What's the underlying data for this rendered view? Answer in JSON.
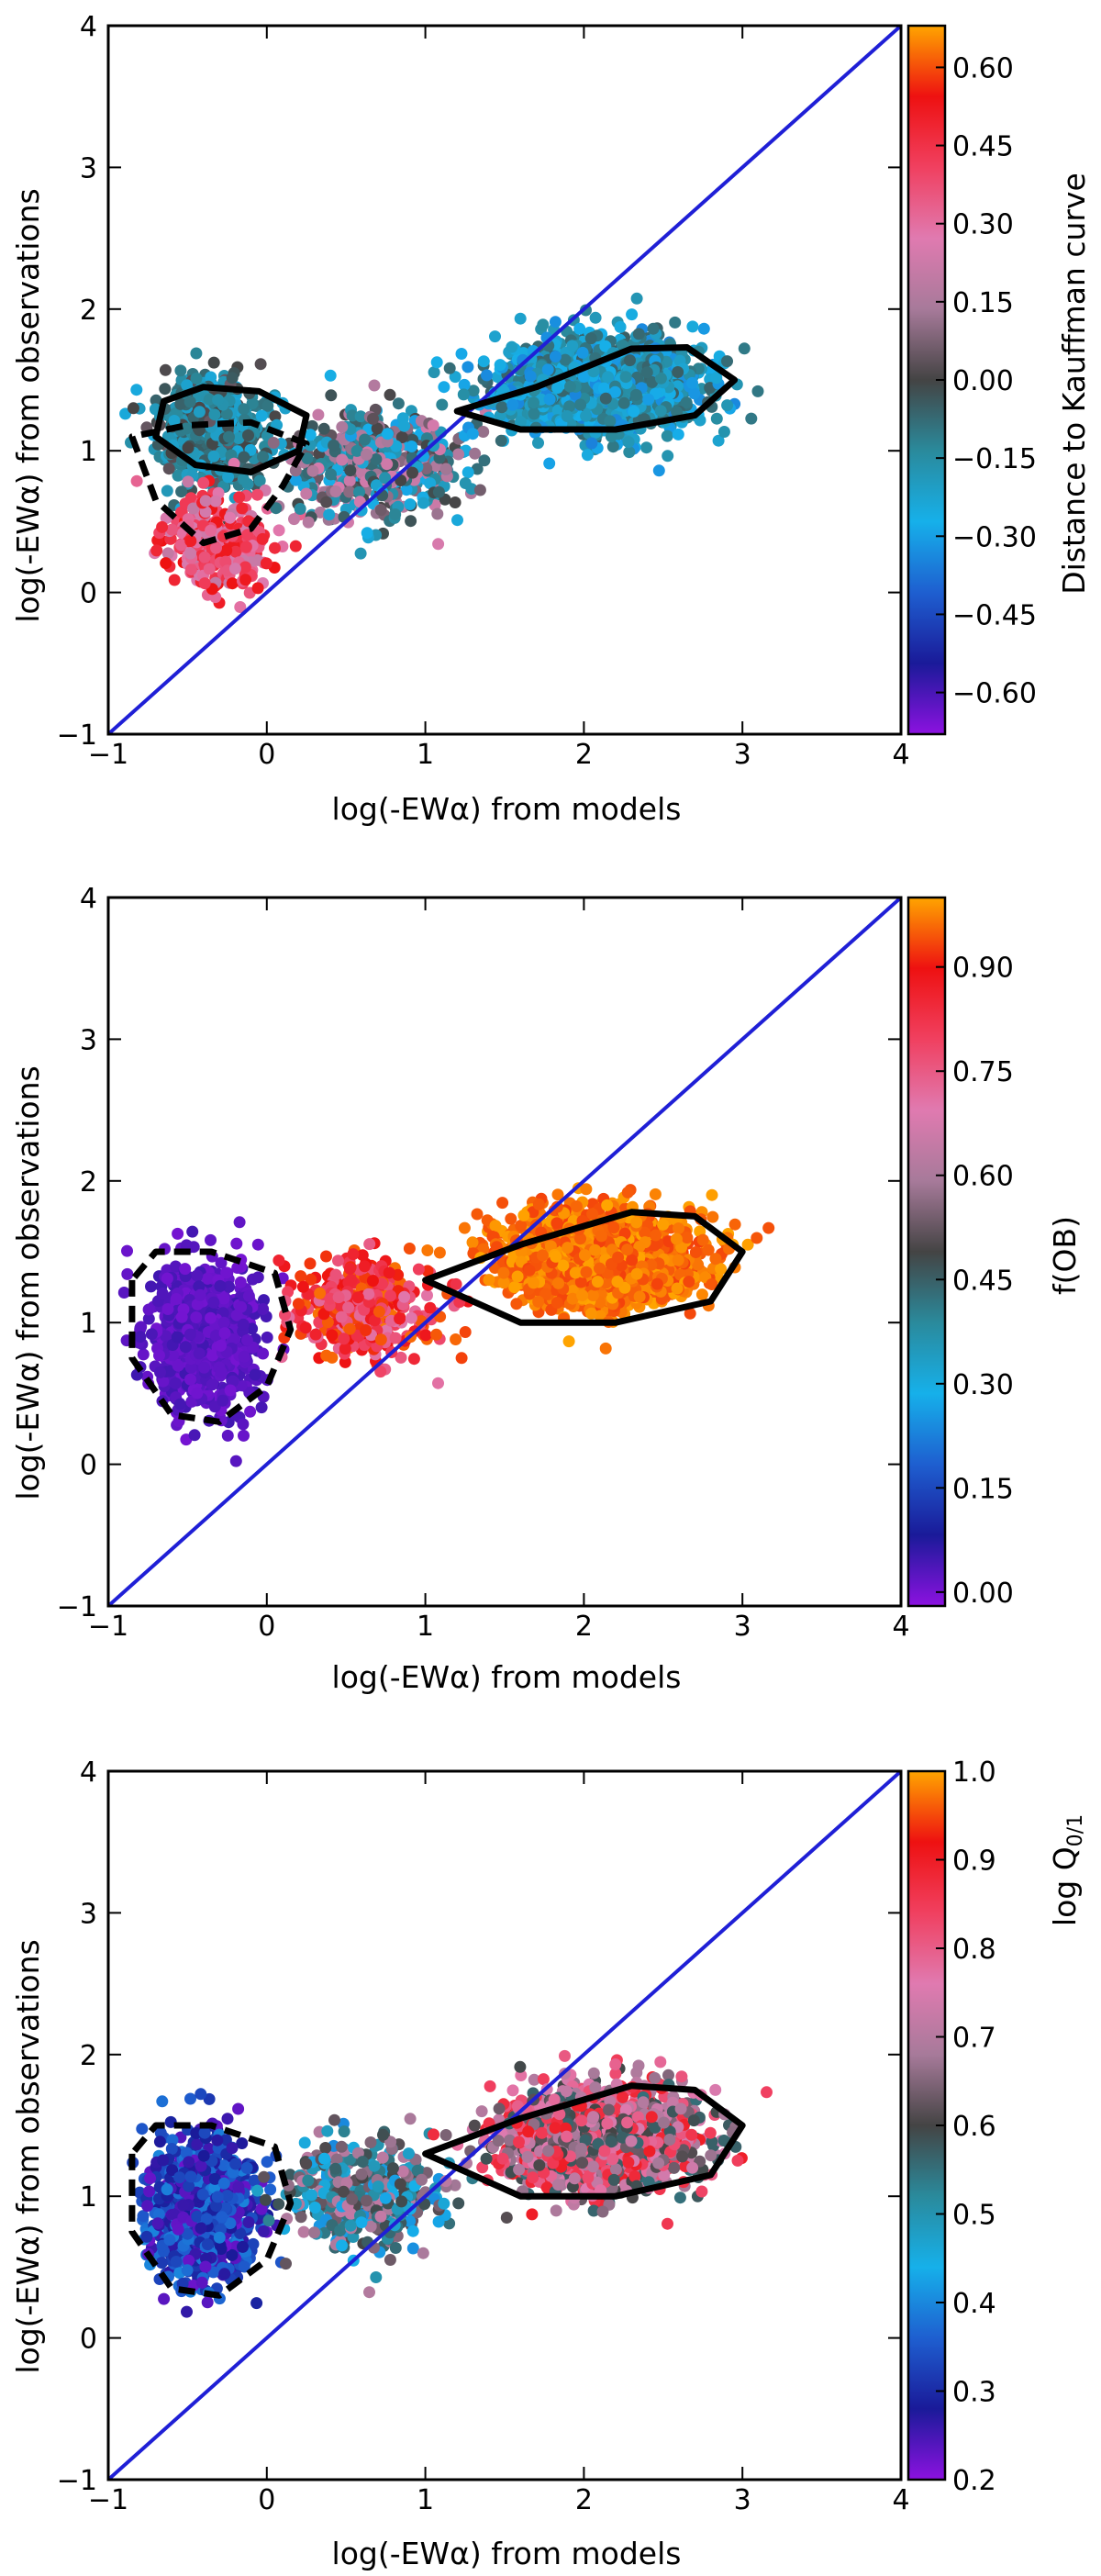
{
  "chart_data": [
    {
      "type": "scatter",
      "xlabel": "log(-EWα) from models",
      "ylabel": "log(-EWα) from observations",
      "xlim": [
        -1,
        4
      ],
      "ylim": [
        -1,
        4
      ],
      "xticks": [
        -1,
        0,
        1,
        2,
        3,
        4
      ],
      "yticks": [
        -1,
        0,
        1,
        2,
        3,
        4
      ],
      "reference_line": {
        "type": "one-to-one",
        "x": [
          -1,
          4
        ],
        "y": [
          -1,
          4
        ],
        "color": "#1f1fd6"
      },
      "colorbar": {
        "label": "Distance to Kauffman curve",
        "range": [
          -0.68,
          0.68
        ],
        "ticks": [
          -0.6,
          -0.45,
          -0.3,
          -0.15,
          0.0,
          0.15,
          0.3,
          0.45,
          0.6
        ],
        "tick_labels": [
          "−0.60",
          "−0.45",
          "−0.30",
          "−0.15",
          "0.00",
          "0.15",
          "0.30",
          "0.45",
          "0.60"
        ],
        "colors": [
          "#8c12e0",
          "#1a1a99",
          "#1e5fd0",
          "#16b0ea",
          "#2a8a9c",
          "#444444",
          "#a77a9a",
          "#e07ab0",
          "#f04060",
          "#ee1111",
          "#ffa500"
        ]
      },
      "series": [
        {
          "cluster": "left-upper",
          "center": [
            -0.35,
            1.15
          ],
          "spread": [
            0.3,
            0.35
          ],
          "value_range": [
            -0.25,
            0.05
          ],
          "n": 650
        },
        {
          "cluster": "left-lower",
          "center": [
            -0.3,
            0.35
          ],
          "spread": [
            0.3,
            0.3
          ],
          "value_range": [
            0.2,
            0.55
          ],
          "n": 320
        },
        {
          "cluster": "middle",
          "center": [
            0.7,
            0.9
          ],
          "spread": [
            0.5,
            0.35
          ],
          "value_range": [
            -0.3,
            0.25
          ],
          "n": 500
        },
        {
          "cluster": "right",
          "center": [
            2.1,
            1.45
          ],
          "spread": [
            0.55,
            0.3
          ],
          "value_range": [
            -0.35,
            -0.05
          ],
          "n": 1700
        }
      ],
      "contours": [
        {
          "style": "solid",
          "points": [
            [
              -0.7,
              1.1
            ],
            [
              -0.65,
              1.35
            ],
            [
              -0.4,
              1.45
            ],
            [
              -0.05,
              1.42
            ],
            [
              0.25,
              1.25
            ],
            [
              0.2,
              1.0
            ],
            [
              -0.1,
              0.85
            ],
            [
              -0.45,
              0.9
            ],
            [
              -0.7,
              1.1
            ]
          ]
        },
        {
          "style": "dashed",
          "points": [
            [
              -0.85,
              1.1
            ],
            [
              -0.7,
              0.65
            ],
            [
              -0.4,
              0.35
            ],
            [
              -0.1,
              0.45
            ],
            [
              0.1,
              0.75
            ],
            [
              0.25,
              1.05
            ],
            [
              -0.1,
              1.2
            ],
            [
              -0.5,
              1.18
            ],
            [
              -0.85,
              1.1
            ]
          ]
        },
        {
          "style": "solid",
          "points": [
            [
              1.2,
              1.28
            ],
            [
              1.7,
              1.45
            ],
            [
              2.3,
              1.72
            ],
            [
              2.65,
              1.73
            ],
            [
              2.95,
              1.5
            ],
            [
              2.7,
              1.25
            ],
            [
              2.2,
              1.15
            ],
            [
              1.6,
              1.15
            ],
            [
              1.2,
              1.28
            ]
          ]
        }
      ]
    },
    {
      "type": "scatter",
      "xlabel": "log(-EWα) from models",
      "ylabel": "log(-EWα) from observations",
      "xlim": [
        -1,
        4
      ],
      "ylim": [
        -1,
        4
      ],
      "xticks": [
        -1,
        0,
        1,
        2,
        3,
        4
      ],
      "yticks": [
        -1,
        0,
        1,
        2,
        3,
        4
      ],
      "reference_line": {
        "type": "one-to-one",
        "x": [
          -1,
          4
        ],
        "y": [
          -1,
          4
        ],
        "color": "#1f1fd6"
      },
      "colorbar": {
        "label": "f(OB)",
        "range": [
          -0.02,
          1.0
        ],
        "ticks": [
          0.0,
          0.15,
          0.3,
          0.45,
          0.6,
          0.75,
          0.9
        ],
        "tick_labels": [
          "0.00",
          "0.15",
          "0.30",
          "0.45",
          "0.60",
          "0.75",
          "0.90"
        ],
        "colors": [
          "#8c12e0",
          "#1a1a99",
          "#1e5fd0",
          "#16b0ea",
          "#2a8a9c",
          "#444444",
          "#a77a9a",
          "#e07ab0",
          "#f04060",
          "#ee1111",
          "#ffa500"
        ]
      },
      "series": [
        {
          "cluster": "left",
          "center": [
            -0.4,
            0.9
          ],
          "spread": [
            0.3,
            0.45
          ],
          "value_range": [
            0.0,
            0.05
          ],
          "n": 900
        },
        {
          "cluster": "middle",
          "center": [
            0.6,
            1.1
          ],
          "spread": [
            0.4,
            0.3
          ],
          "value_range": [
            0.7,
            0.97
          ],
          "n": 450
        },
        {
          "cluster": "right",
          "center": [
            2.1,
            1.45
          ],
          "spread": [
            0.55,
            0.3
          ],
          "value_range": [
            0.93,
            1.0
          ],
          "n": 1700
        }
      ],
      "contours": [
        {
          "style": "dashed",
          "points": [
            [
              -0.85,
              1.3
            ],
            [
              -0.85,
              0.75
            ],
            [
              -0.6,
              0.35
            ],
            [
              -0.3,
              0.3
            ],
            [
              0.0,
              0.55
            ],
            [
              0.15,
              0.95
            ],
            [
              0.05,
              1.35
            ],
            [
              -0.35,
              1.5
            ],
            [
              -0.7,
              1.5
            ],
            [
              -0.85,
              1.3
            ]
          ]
        },
        {
          "style": "solid",
          "points": [
            [
              1.0,
              1.3
            ],
            [
              1.6,
              1.55
            ],
            [
              2.3,
              1.78
            ],
            [
              2.7,
              1.75
            ],
            [
              3.0,
              1.5
            ],
            [
              2.8,
              1.15
            ],
            [
              2.2,
              1.0
            ],
            [
              1.6,
              1.0
            ],
            [
              1.0,
              1.3
            ]
          ]
        }
      ]
    },
    {
      "type": "scatter",
      "xlabel": "log(-EWα) from models",
      "ylabel": "log(-EWα) from observations",
      "xlim": [
        -1,
        4
      ],
      "ylim": [
        -1,
        4
      ],
      "xticks": [
        -1,
        0,
        1,
        2,
        3,
        4
      ],
      "yticks": [
        -1,
        0,
        1,
        2,
        3,
        4
      ],
      "reference_line": {
        "type": "one-to-one",
        "x": [
          -1,
          4
        ],
        "y": [
          -1,
          4
        ],
        "color": "#1f1fd6"
      },
      "colorbar": {
        "label": "log Q",
        "label_subscript": "0/1",
        "range": [
          0.2,
          1.0
        ],
        "ticks": [
          0.2,
          0.3,
          0.4,
          0.5,
          0.6,
          0.7,
          0.8,
          0.9,
          1.0
        ],
        "tick_labels": [
          "0.2",
          "0.3",
          "0.4",
          "0.5",
          "0.6",
          "0.7",
          "0.8",
          "0.9",
          "1.0"
        ],
        "colors": [
          "#8c12e0",
          "#1a1a99",
          "#1e5fd0",
          "#16b0ea",
          "#2a8a9c",
          "#444444",
          "#a77a9a",
          "#e07ab0",
          "#f04060",
          "#ee1111",
          "#ffa500"
        ]
      },
      "series": [
        {
          "cluster": "left",
          "center": [
            -0.4,
            0.9
          ],
          "spread": [
            0.3,
            0.45
          ],
          "value_range": [
            0.22,
            0.4
          ],
          "n": 900
        },
        {
          "cluster": "middle",
          "center": [
            0.6,
            1.0
          ],
          "spread": [
            0.45,
            0.35
          ],
          "value_range": [
            0.4,
            0.72
          ],
          "n": 450
        },
        {
          "cluster": "right",
          "center": [
            2.1,
            1.4
          ],
          "spread": [
            0.55,
            0.32
          ],
          "value_range": [
            0.55,
            0.9
          ],
          "n": 1700
        }
      ],
      "contours": [
        {
          "style": "dashed",
          "points": [
            [
              -0.85,
              1.3
            ],
            [
              -0.85,
              0.75
            ],
            [
              -0.6,
              0.35
            ],
            [
              -0.3,
              0.3
            ],
            [
              0.0,
              0.55
            ],
            [
              0.15,
              0.95
            ],
            [
              0.05,
              1.35
            ],
            [
              -0.35,
              1.5
            ],
            [
              -0.7,
              1.5
            ],
            [
              -0.85,
              1.3
            ]
          ]
        },
        {
          "style": "solid",
          "points": [
            [
              1.0,
              1.3
            ],
            [
              1.6,
              1.55
            ],
            [
              2.3,
              1.78
            ],
            [
              2.7,
              1.75
            ],
            [
              3.0,
              1.5
            ],
            [
              2.8,
              1.15
            ],
            [
              2.2,
              1.0
            ],
            [
              1.6,
              1.0
            ],
            [
              1.0,
              1.3
            ]
          ]
        }
      ]
    }
  ]
}
